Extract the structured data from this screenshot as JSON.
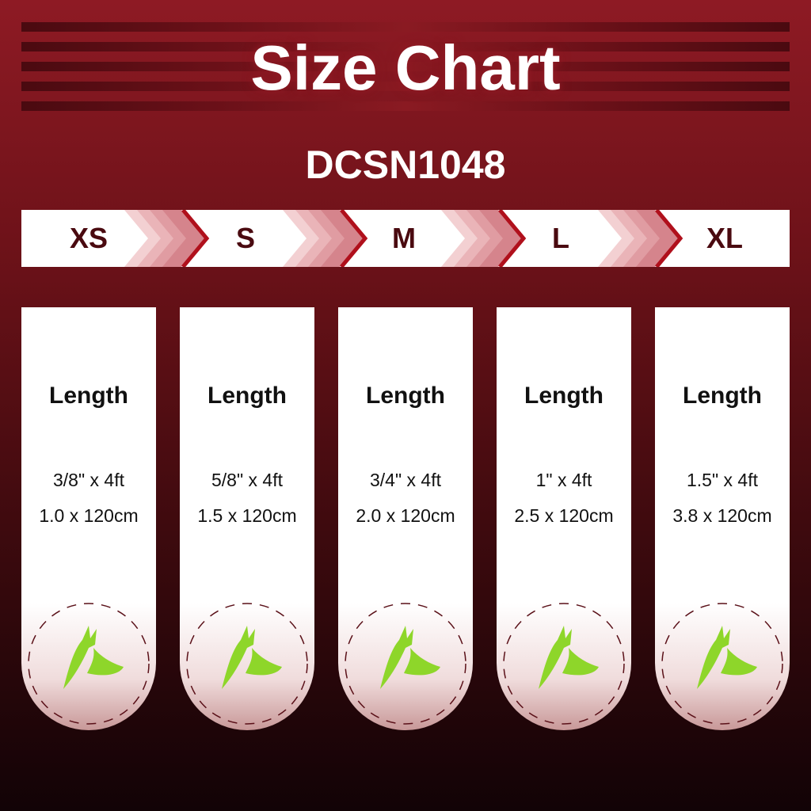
{
  "header": {
    "title": "Size Chart",
    "product_code": "DCSN1048"
  },
  "sizes": [
    "XS",
    "S",
    "M",
    "L",
    "XL"
  ],
  "cards": [
    {
      "label": "Length",
      "inch": "3/8\" x 4ft",
      "cm": "1.0 x 120cm"
    },
    {
      "label": "Length",
      "inch": "5/8\" x 4ft",
      "cm": "1.5 x 120cm"
    },
    {
      "label": "Length",
      "inch": "3/4\" x 4ft",
      "cm": "2.0 x 120cm"
    },
    {
      "label": "Length",
      "inch": "1\" x 4ft",
      "cm": "2.5 x 120cm"
    },
    {
      "label": "Length",
      "inch": "1.5\" x 4ft",
      "cm": "3.8 x 120cm"
    }
  ],
  "icons": {
    "logo": "green-dog-head-logo",
    "separator": "chevron-right-icon"
  },
  "colors": {
    "background": "#8e1a24",
    "logo": "#8ed62a",
    "size_text": "#4a0a10"
  }
}
